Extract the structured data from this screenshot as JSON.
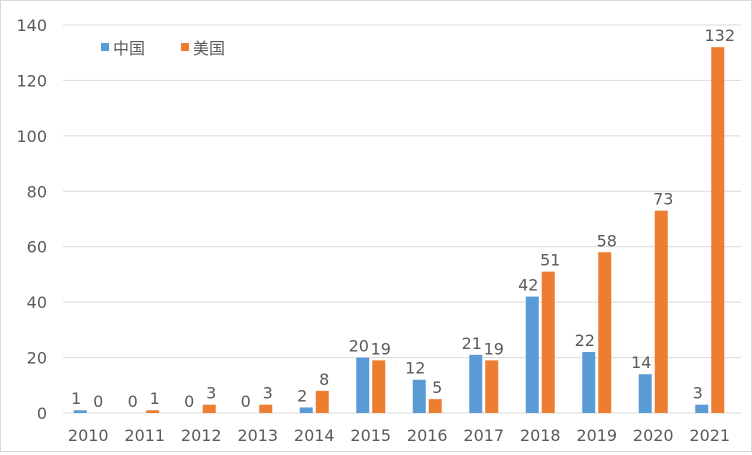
{
  "chart_data": {
    "type": "bar",
    "title": "",
    "xlabel": "",
    "ylabel": "",
    "categories": [
      "2010",
      "2011",
      "2012",
      "2013",
      "2014",
      "2015",
      "2016",
      "2017",
      "2018",
      "2019",
      "2020",
      "2021"
    ],
    "series": [
      {
        "name": "中国",
        "color": "#5b9bd5",
        "values": [
          1,
          0,
          0,
          0,
          2,
          20,
          12,
          21,
          42,
          22,
          14,
          3
        ]
      },
      {
        "name": "美国",
        "color": "#ed7d31",
        "values": [
          0,
          1,
          3,
          3,
          8,
          19,
          5,
          19,
          51,
          58,
          73,
          132
        ]
      }
    ],
    "ylim": [
      0,
      140
    ],
    "yticks": [
      0,
      20,
      40,
      60,
      80,
      100,
      120,
      140
    ],
    "grid": true,
    "legend": "top-left",
    "data_labels": true
  }
}
